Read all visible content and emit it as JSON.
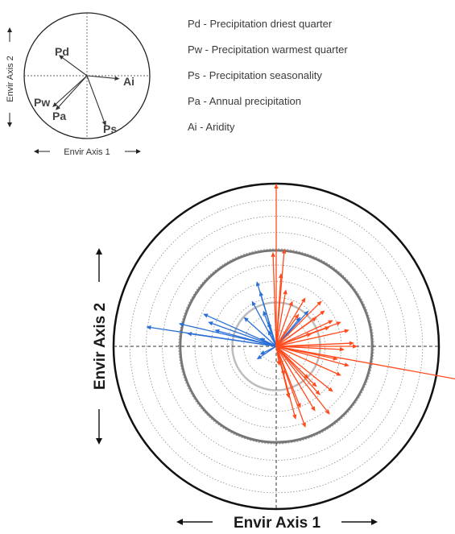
{
  "legend": [
    {
      "code": "Pd",
      "text": "Pd - Precipitation driest quarter"
    },
    {
      "code": "Pw",
      "text": "Pw - Precipitation warmest quarter"
    },
    {
      "code": "Ps",
      "text": "Ps - Precipitation seasonality"
    },
    {
      "code": "Pa",
      "text": "Pa - Annual precipitation"
    },
    {
      "code": "Ai",
      "text": "Ai - Aridity"
    }
  ],
  "inset": {
    "axis1_label": "Envir Axis 1",
    "axis2_label": "Envir Axis 2",
    "vectors": [
      {
        "code": "Pd",
        "dx": -0.45,
        "dy": 0.33
      },
      {
        "code": "Ai",
        "dx": 0.52,
        "dy": -0.05
      },
      {
        "code": "Pw",
        "dx": -0.55,
        "dy": -0.5
      },
      {
        "code": "Pa",
        "dx": -0.5,
        "dy": -0.55
      },
      {
        "code": "Ps",
        "dx": 0.3,
        "dy": -0.8
      }
    ]
  },
  "main": {
    "axis1_label": "Envir Axis 1",
    "axis2_label": "Envir Axis 2",
    "colors": {
      "red": "#ff4a1c",
      "blue": "#2a6fd6",
      "outer": "#111111",
      "mid": "#777777",
      "inner": "#bdbdbd"
    },
    "rings": {
      "dotted": [
        0.1,
        0.2,
        0.3,
        0.4,
        0.5,
        0.6,
        0.7,
        0.8,
        0.9
      ],
      "inner": 0.27,
      "mid": 0.59,
      "outer": 1.0
    },
    "red_vectors": [
      [
        0.0,
        1.0
      ],
      [
        -0.02,
        0.58
      ],
      [
        0.05,
        0.6
      ],
      [
        0.03,
        0.45
      ],
      [
        0.06,
        0.35
      ],
      [
        0.25,
        0.18
      ],
      [
        0.3,
        0.22
      ],
      [
        0.35,
        0.16
      ],
      [
        0.4,
        0.15
      ],
      [
        0.33,
        0.12
      ],
      [
        0.45,
        0.1
      ],
      [
        0.22,
        0.08
      ],
      [
        0.48,
        0.02
      ],
      [
        0.5,
        0.0
      ],
      [
        0.42,
        -0.02
      ],
      [
        1.21,
        -0.22
      ],
      [
        0.38,
        -0.08
      ],
      [
        0.2,
        -0.2
      ],
      [
        0.25,
        -0.25
      ],
      [
        0.27,
        -0.3
      ],
      [
        0.15,
        -0.38
      ],
      [
        0.24,
        -0.4
      ],
      [
        0.33,
        -0.42
      ],
      [
        0.35,
        -0.28
      ],
      [
        0.4,
        -0.18
      ],
      [
        0.45,
        -0.12
      ],
      [
        0.12,
        -0.45
      ],
      [
        0.18,
        -0.5
      ],
      [
        0.08,
        -0.32
      ],
      [
        0.05,
        -0.18
      ],
      [
        0.1,
        0.28
      ],
      [
        0.14,
        0.2
      ],
      [
        0.18,
        0.3
      ],
      [
        0.28,
        0.28
      ],
      [
        0.02,
        -0.12
      ]
    ],
    "blue_vectors": [
      [
        -0.8,
        0.12
      ],
      [
        -0.6,
        0.14
      ],
      [
        -0.55,
        0.08
      ],
      [
        -0.45,
        0.2
      ],
      [
        -0.42,
        0.15
      ],
      [
        -0.38,
        0.1
      ],
      [
        -0.12,
        0.4
      ],
      [
        -0.1,
        0.34
      ],
      [
        -0.15,
        0.28
      ],
      [
        -0.08,
        0.22
      ],
      [
        -0.05,
        0.15
      ],
      [
        -0.2,
        0.18
      ],
      [
        -0.05,
        0.1
      ],
      [
        -0.1,
        0.05
      ],
      [
        -0.1,
        -0.05
      ],
      [
        -0.12,
        -0.08
      ],
      [
        0.15,
        0.18
      ],
      [
        0.2,
        0.22
      ]
    ]
  }
}
